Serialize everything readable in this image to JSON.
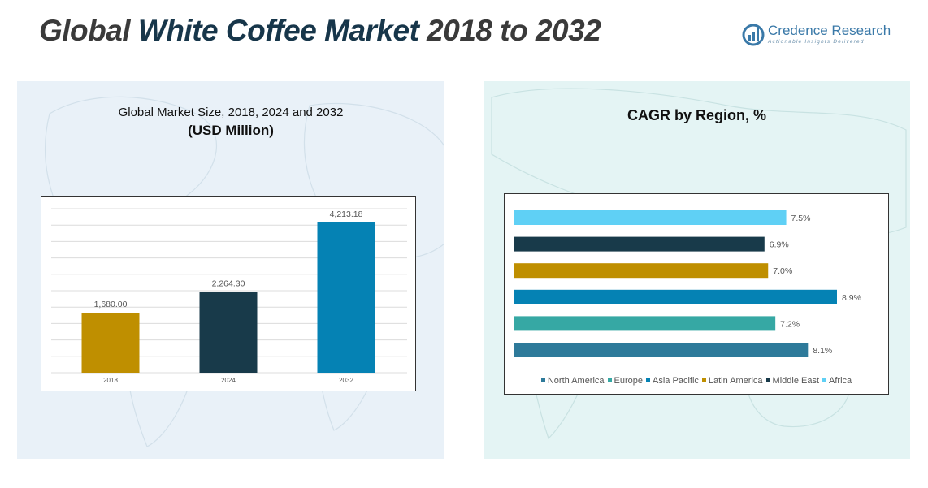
{
  "header": {
    "title_part1": "Global ",
    "title_part2": "White Coffee Market",
    "title_part3": " 2018 to 2032"
  },
  "logo": {
    "name": "Credence Research",
    "tagline": "Actionable Insights Delivered"
  },
  "colors": {
    "left_panel_bg": "#e9f1f8",
    "right_panel_bg": "#e4f4f4",
    "title_navy": "#17364a",
    "title_dark": "#3a3a3a"
  },
  "chart_data": [
    {
      "type": "bar",
      "title": "Global Market Size, 2018, 2024 and 2032",
      "subtitle": "(USD Million)",
      "categories": [
        "2018",
        "2024",
        "2032"
      ],
      "values": [
        1680.0,
        2264.3,
        4213.18
      ],
      "value_labels": [
        "1,680.00",
        "2,264.30",
        "4,213.18"
      ],
      "colors": [
        "#bf8f00",
        "#183a4a",
        "#0582b4"
      ],
      "ylim": [
        0,
        4600
      ],
      "gridlines": 10,
      "grid": true,
      "xlabel": "",
      "ylabel": ""
    },
    {
      "type": "bar",
      "orientation": "horizontal",
      "title": "CAGR by Region, %",
      "series": [
        {
          "name": "North America",
          "value": 8.1,
          "label": "8.1%",
          "color": "#2e7a9a"
        },
        {
          "name": "Europe",
          "value": 7.2,
          "label": "7.2%",
          "color": "#36a8a4"
        },
        {
          "name": "Asia Pacific",
          "value": 8.9,
          "label": "8.9%",
          "color": "#0582b4"
        },
        {
          "name": "Latin America",
          "value": 7.0,
          "label": "7.0%",
          "color": "#bf8f00"
        },
        {
          "name": "Middle East",
          "value": 6.9,
          "label": "6.9%",
          "color": "#183a4a"
        },
        {
          "name": "Africa",
          "value": 7.5,
          "label": "7.5%",
          "color": "#5fd0f5"
        }
      ],
      "draw_order_top_to_bottom": [
        "Africa",
        "Middle East",
        "Latin America",
        "Asia Pacific",
        "Europe",
        "North America"
      ],
      "xlim": [
        0,
        9
      ],
      "grid": false,
      "legend_position": "bottom"
    }
  ]
}
